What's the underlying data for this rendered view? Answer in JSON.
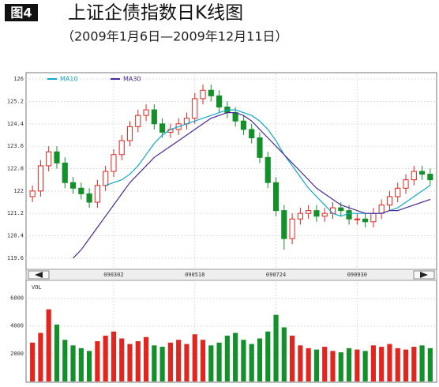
{
  "chart_data": {
    "type": "candlestick",
    "figure_label": "图4",
    "title": "上证企债指数日K线图",
    "subtitle": "（2009年1月6日—2009年12月11日）",
    "categories": [
      null,
      null,
      null,
      null,
      null,
      null,
      null,
      null,
      null,
      null,
      "090302",
      null,
      null,
      null,
      null,
      null,
      null,
      null,
      null,
      null,
      "090518",
      null,
      null,
      null,
      null,
      null,
      null,
      null,
      null,
      null,
      "090724",
      null,
      null,
      null,
      null,
      null,
      null,
      null,
      null,
      null,
      "090930",
      null,
      null,
      null,
      null,
      null,
      null,
      null,
      null,
      null
    ],
    "open": [
      121.8,
      122.0,
      122.9,
      123.4,
      123.0,
      122.3,
      122.1,
      121.9,
      121.6,
      122.2,
      122.7,
      123.3,
      123.8,
      124.3,
      124.7,
      124.9,
      124.4,
      124.1,
      124.2,
      124.4,
      124.6,
      125.3,
      125.6,
      125.4,
      125.0,
      124.8,
      124.5,
      124.2,
      123.9,
      123.2,
      122.3,
      121.3,
      120.3,
      121.0,
      121.2,
      121.3,
      121.1,
      121.2,
      121.4,
      121.3,
      121.0,
      121.0,
      120.9,
      121.2,
      121.5,
      121.8,
      122.1,
      122.4,
      122.7,
      122.6
    ],
    "high": [
      122.2,
      123.1,
      123.6,
      123.6,
      123.2,
      122.5,
      122.3,
      122.1,
      122.4,
      122.9,
      123.5,
      124.0,
      124.5,
      124.9,
      125.1,
      125.1,
      124.6,
      124.4,
      124.6,
      124.8,
      125.5,
      125.8,
      125.8,
      125.6,
      125.2,
      125.0,
      124.7,
      124.4,
      124.1,
      123.4,
      122.5,
      121.5,
      121.2,
      121.4,
      121.5,
      121.5,
      121.4,
      121.6,
      121.6,
      121.5,
      121.2,
      121.2,
      121.4,
      121.7,
      122.0,
      122.3,
      122.6,
      122.9,
      122.9,
      122.8
    ],
    "low": [
      121.6,
      121.8,
      122.7,
      122.8,
      122.1,
      121.9,
      121.7,
      121.4,
      121.4,
      122.0,
      122.5,
      123.1,
      123.6,
      124.1,
      124.5,
      124.2,
      123.9,
      123.9,
      124.0,
      124.2,
      124.4,
      125.1,
      125.2,
      124.8,
      124.6,
      124.3,
      124.0,
      123.7,
      123.0,
      122.1,
      121.1,
      119.9,
      120.1,
      120.8,
      121.0,
      120.9,
      120.9,
      121.0,
      121.1,
      120.8,
      120.8,
      120.7,
      120.7,
      121.0,
      121.3,
      121.6,
      121.9,
      122.2,
      122.4,
      122.2
    ],
    "close": [
      122.0,
      122.9,
      123.4,
      123.0,
      122.3,
      122.1,
      121.9,
      121.6,
      122.2,
      122.7,
      123.3,
      123.8,
      124.3,
      124.7,
      124.9,
      124.4,
      124.1,
      124.2,
      124.4,
      124.6,
      125.3,
      125.6,
      125.4,
      125.0,
      124.8,
      124.5,
      124.2,
      123.9,
      123.2,
      122.3,
      121.3,
      120.3,
      121.0,
      121.2,
      121.3,
      121.1,
      121.2,
      121.4,
      121.3,
      121.0,
      121.0,
      120.9,
      121.2,
      121.5,
      121.8,
      122.1,
      122.4,
      122.7,
      122.6,
      122.4
    ],
    "up_color": "#e0261f",
    "down_color": "#14902a",
    "series": [
      {
        "name": "MA10",
        "color": "#10a8c8",
        "values": [
          null,
          null,
          null,
          null,
          null,
          null,
          null,
          null,
          null,
          122.2,
          122.3,
          122.4,
          122.6,
          122.9,
          123.3,
          123.7,
          124.0,
          124.2,
          124.3,
          124.4,
          124.5,
          124.6,
          124.7,
          124.8,
          124.9,
          124.9,
          124.8,
          124.7,
          124.5,
          124.2,
          123.8,
          123.3,
          122.9,
          122.5,
          122.1,
          121.8,
          121.5,
          121.2,
          121.1,
          121.2,
          121.2,
          121.2,
          121.2,
          121.2,
          121.3,
          121.4,
          121.6,
          121.8,
          122.0,
          122.2
        ]
      },
      {
        "name": "MA30",
        "color": "#4a2a9a",
        "values": [
          null,
          null,
          null,
          null,
          null,
          119.6,
          119.9,
          120.3,
          120.7,
          121.1,
          121.5,
          121.9,
          122.3,
          122.6,
          122.9,
          123.2,
          123.4,
          123.6,
          123.8,
          124.0,
          124.2,
          124.4,
          124.6,
          124.7,
          124.8,
          124.8,
          124.7,
          124.5,
          124.2,
          123.9,
          123.6,
          123.3,
          123.0,
          122.7,
          122.4,
          122.1,
          121.9,
          121.7,
          121.5,
          121.4,
          121.3,
          121.2,
          121.2,
          121.2,
          121.3,
          121.3,
          121.4,
          121.5,
          121.6,
          121.7
        ]
      }
    ],
    "ylim": [
      119.23,
      126.2
    ],
    "yticks": [
      126.0,
      125.2,
      124.4,
      123.6,
      122.8,
      122.0,
      121.2,
      120.4,
      119.6
    ],
    "volume_label": "VOL",
    "volume": [
      2800,
      3500,
      5200,
      4100,
      3000,
      2600,
      2400,
      2200,
      2900,
      3300,
      3600,
      3100,
      2700,
      2900,
      3200,
      2600,
      2500,
      2800,
      3000,
      2700,
      3400,
      3000,
      2600,
      2800,
      3300,
      3500,
      3000,
      2700,
      3100,
      3600,
      4800,
      3900,
      3300,
      2600,
      2400,
      2300,
      2500,
      2200,
      2100,
      2400,
      2300,
      2200,
      2600,
      2500,
      2700,
      2400,
      2300,
      2500,
      2600,
      2400
    ],
    "y2lim": [
      0,
      7000
    ],
    "y2ticks": [
      6000,
      4000,
      2000
    ],
    "grid": true
  }
}
